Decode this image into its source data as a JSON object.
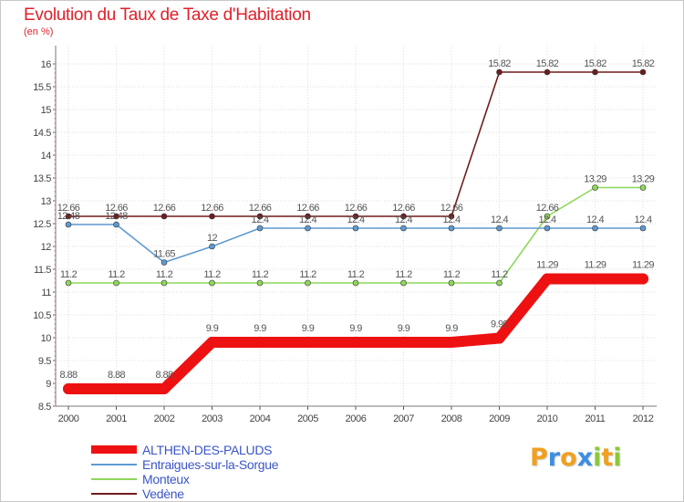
{
  "title": "Evolution du Taux de Taxe d'Habitation",
  "subtitle": "(en %)",
  "logo": {
    "letters": [
      "P",
      "r",
      "o",
      "x",
      "i",
      "t",
      "i"
    ],
    "colors": [
      "#f0a020",
      "#3c8ee0",
      "#f0a020",
      "#3c8ee0",
      "#8bc83a",
      "#f0a020",
      "#8bc83a"
    ]
  },
  "chart_data": {
    "type": "line",
    "title": "Evolution du Taux de Taxe d'Habitation",
    "ylabel": "(en %)",
    "xlabel": "",
    "categories": [
      "2000",
      "2001",
      "2002",
      "2003",
      "2004",
      "2005",
      "2006",
      "2007",
      "2008",
      "2009",
      "2010",
      "2011",
      "2012"
    ],
    "y_ticks": [
      "8.5",
      "9",
      "9.5",
      "10",
      "10.5",
      "11",
      "11.5",
      "12",
      "12.5",
      "13",
      "13.5",
      "14",
      "14.5",
      "15",
      "15.5",
      "16"
    ],
    "ylim": [
      8.5,
      16
    ],
    "grid": true,
    "legend_position": "bottom-left",
    "series": [
      {
        "name": "Vedène",
        "color": "#701c1c",
        "values": [
          12.66,
          12.66,
          12.66,
          12.66,
          12.66,
          12.66,
          12.66,
          12.66,
          12.66,
          15.82,
          15.82,
          15.82,
          15.82
        ],
        "labels": [
          "12.66",
          "12.66",
          "12.66",
          "12.66",
          "12.66",
          "12.66",
          "12.66",
          "12.66",
          "12.66",
          "15.82",
          "15.82",
          "15.82",
          "15.82"
        ]
      },
      {
        "name": "Monteux",
        "color": "#8ed85a",
        "values": [
          11.2,
          11.2,
          11.2,
          11.2,
          11.2,
          11.2,
          11.2,
          11.2,
          11.2,
          11.2,
          12.66,
          13.29,
          13.29
        ],
        "labels": [
          "11.2",
          "11.2",
          "11.2",
          "11.2",
          "11.2",
          "11.2",
          "11.2",
          "11.2",
          "11.2",
          "11.2",
          "12.66",
          "13.29",
          "13.29"
        ]
      },
      {
        "name": "Entraigues-sur-la-Sorgue",
        "color": "#5e9ad2",
        "values": [
          12.48,
          12.48,
          11.65,
          12,
          12.4,
          12.4,
          12.4,
          12.4,
          12.4,
          12.4,
          12.4,
          12.4,
          12.4
        ],
        "labels": [
          "12.48",
          "12.48",
          "11.65",
          "12",
          "12.4",
          "12.4",
          "12.4",
          "12.4",
          "12.4",
          "12.4",
          "12.4",
          "12.4",
          "12.4"
        ]
      },
      {
        "name": "ALTHEN-DES-PALUDS",
        "color": "#ee1111",
        "values": [
          8.88,
          8.88,
          8.88,
          9.9,
          9.9,
          9.9,
          9.9,
          9.9,
          9.9,
          9.99,
          11.29,
          11.29,
          11.29
        ],
        "labels": [
          "8.88",
          "8.88",
          "8.88",
          "9.9",
          "9.9",
          "9.9",
          "9.9",
          "9.9",
          "9.9",
          "9.99",
          "11.29",
          "11.29",
          "11.29"
        ]
      }
    ],
    "legend": [
      "ALTHEN-DES-PALUDS",
      "Entraigues-sur-la-Sorgue",
      "Monteux",
      "Vedène"
    ]
  }
}
